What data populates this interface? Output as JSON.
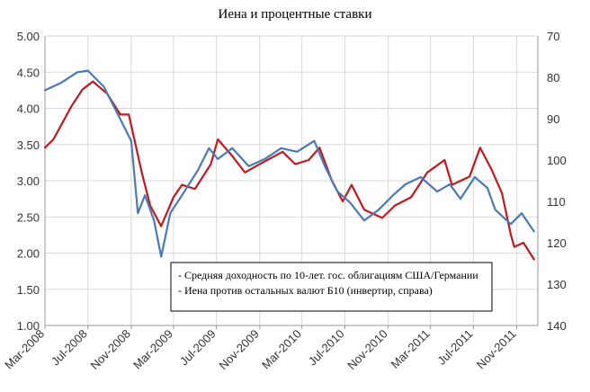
{
  "chart_data": {
    "type": "line",
    "title": "Иена и процентные ставки",
    "xlabel": "",
    "ylabel": "",
    "x_ticks": [
      "Mar-2008",
      "Jul-2008",
      "Nov-2008",
      "Mar-2009",
      "Jul-2009",
      "Nov-2009",
      "Mar-2010",
      "Jul-2010",
      "Nov-2010",
      "Mar-2011",
      "Jul-2011",
      "Nov-2011"
    ],
    "x_range": [
      "2008-03-01",
      "2011-12-31"
    ],
    "ylim_left": [
      1.0,
      5.0
    ],
    "y_ticks_left": [
      "1.00",
      "1.50",
      "2.00",
      "2.50",
      "3.00",
      "3.50",
      "4.00",
      "4.50",
      "5.00"
    ],
    "ylim_right": [
      70,
      140
    ],
    "y_right_inverted": true,
    "y_ticks_right": [
      "70",
      "80",
      "90",
      "100",
      "110",
      "120",
      "130",
      "140"
    ],
    "grid": true,
    "legend_position": "bottom-center",
    "legend": [
      "- Средняя доходность по 10-лет. гос. облигациям США/Германии",
      "- Иена против остальных валют Б10 (инвертир, справа)"
    ],
    "series": [
      {
        "axis": "left",
        "color": "#4a7ab5",
        "x": [
          "2008-03-01",
          "2008-04-15",
          "2008-06-01",
          "2008-07-01",
          "2008-08-15",
          "2008-10-01",
          "2008-11-01",
          "2008-11-20",
          "2008-12-10",
          "2009-01-05",
          "2009-01-25",
          "2009-02-20",
          "2009-04-01",
          "2009-05-10",
          "2009-06-10",
          "2009-07-05",
          "2009-08-15",
          "2009-10-01",
          "2009-11-15",
          "2010-01-01",
          "2010-02-15",
          "2010-04-05",
          "2010-05-05",
          "2010-06-10",
          "2010-07-15",
          "2010-08-25",
          "2010-10-05",
          "2010-11-15",
          "2010-12-20",
          "2011-02-01",
          "2011-03-20",
          "2011-04-25",
          "2011-05-25",
          "2011-07-05",
          "2011-08-10",
          "2011-09-01",
          "2011-10-15",
          "2011-11-15",
          "2011-12-20"
        ],
        "values": [
          4.25,
          4.35,
          4.5,
          4.52,
          4.3,
          3.85,
          3.55,
          2.55,
          2.8,
          2.45,
          1.95,
          2.55,
          2.85,
          3.15,
          3.45,
          3.3,
          3.45,
          3.2,
          3.3,
          3.45,
          3.4,
          3.55,
          3.2,
          2.85,
          2.7,
          2.45,
          2.6,
          2.8,
          2.95,
          3.05,
          2.85,
          2.95,
          2.75,
          3.05,
          2.9,
          2.6,
          2.4,
          2.55,
          2.3
        ]
      },
      {
        "axis": "right",
        "color": "#c0191e",
        "x": [
          "2008-03-01",
          "2008-03-25",
          "2008-05-15",
          "2008-06-15",
          "2008-07-15",
          "2008-08-25",
          "2008-10-01",
          "2008-10-25",
          "2008-12-01",
          "2008-12-25",
          "2009-01-25",
          "2009-03-01",
          "2009-03-25",
          "2009-05-01",
          "2009-06-15",
          "2009-07-05",
          "2009-08-15",
          "2009-09-20",
          "2009-11-01",
          "2010-01-05",
          "2010-02-10",
          "2010-03-20",
          "2010-04-20",
          "2010-05-25",
          "2010-06-25",
          "2010-07-20",
          "2010-08-25",
          "2010-10-15",
          "2010-11-20",
          "2011-01-05",
          "2011-02-20",
          "2011-04-10",
          "2011-05-01",
          "2011-06-20",
          "2011-07-20",
          "2011-08-20",
          "2011-09-20",
          "2011-10-15",
          "2011-10-25",
          "2011-11-20",
          "2011-12-20"
        ],
        "values": [
          97,
          95,
          87,
          83,
          81,
          84,
          89,
          89,
          103,
          111,
          116,
          109,
          106,
          107,
          101,
          95,
          99,
          103,
          101,
          98,
          101,
          100,
          97,
          105,
          110,
          106,
          112,
          114,
          111,
          109,
          103,
          100,
          106,
          104,
          97,
          102,
          108,
          118,
          121,
          120,
          124
        ]
      }
    ]
  }
}
